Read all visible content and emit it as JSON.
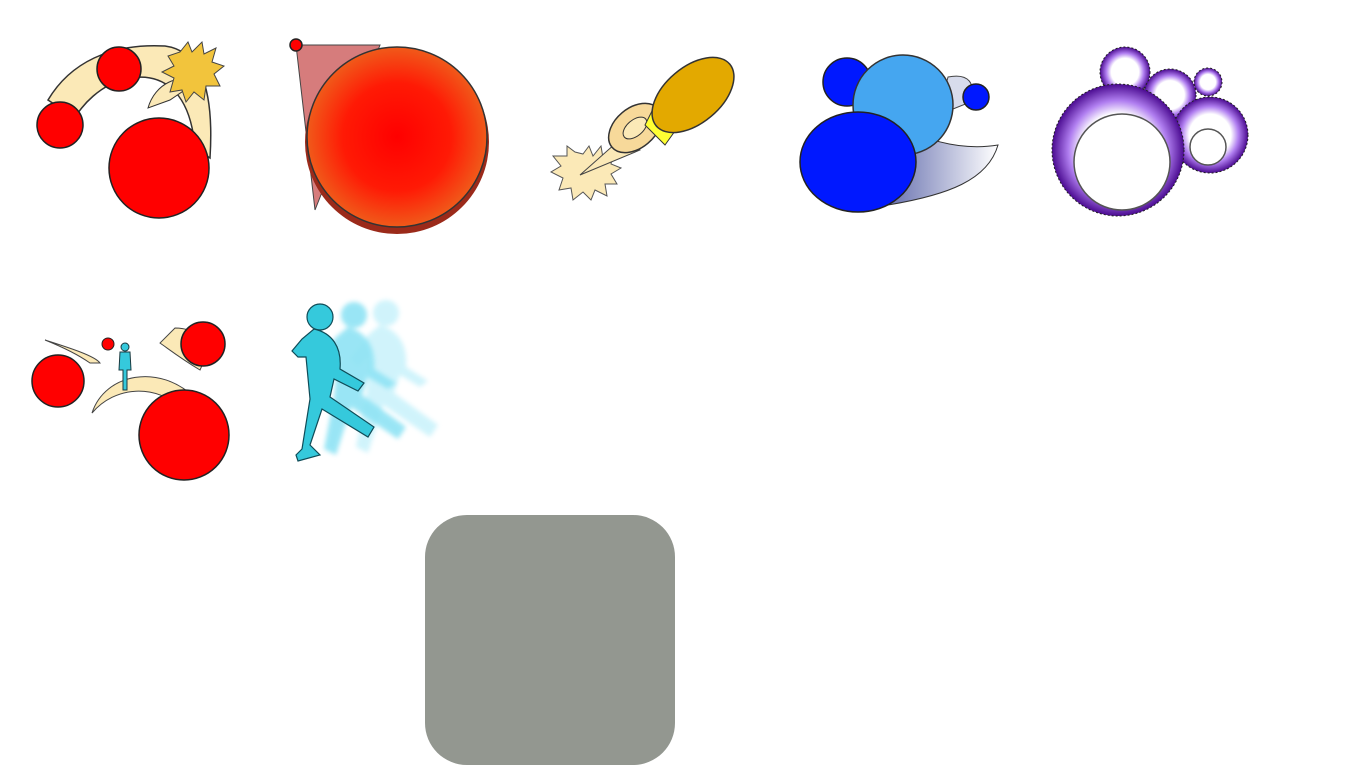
{
  "palette": {
    "background": "#ffffff",
    "red": "#ff0000",
    "cream": "#fbe9b7",
    "gold": "#f2c43c",
    "amber": "#e3a900",
    "yellow": "#ffff33",
    "blue": "#0018ff",
    "light_blue": "#45a6f0",
    "purple": "#7a2be0",
    "cyan": "#35c9dc",
    "panel_gray": "#939790"
  },
  "icons": [
    {
      "name": "bouncing-balls-icon"
    },
    {
      "name": "gradient-sphere-icon"
    },
    {
      "name": "firing-cannon-icon"
    },
    {
      "name": "blue-spheres-motion-icon"
    },
    {
      "name": "purple-fuzzy-bubbles-icon"
    },
    {
      "name": "balls-and-figure-icon"
    },
    {
      "name": "running-figure-motion-blur-icon"
    }
  ]
}
